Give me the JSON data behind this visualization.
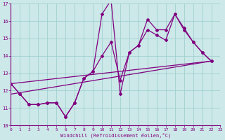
{
  "xlabel": "Windchill (Refroidissement éolien,°C)",
  "xlim": [
    0,
    23
  ],
  "ylim": [
    10,
    17
  ],
  "yticks": [
    10,
    11,
    12,
    13,
    14,
    15,
    16,
    17
  ],
  "xticks": [
    0,
    1,
    2,
    3,
    4,
    5,
    6,
    7,
    8,
    9,
    10,
    11,
    12,
    13,
    14,
    15,
    16,
    17,
    18,
    19,
    20,
    21,
    22,
    23
  ],
  "line_color": "#800080",
  "bg_color": "#cce8e8",
  "grid_color": "#99cccc",
  "x_main": [
    0,
    1,
    2,
    3,
    4,
    5,
    6,
    7,
    8,
    9,
    10,
    11,
    12,
    13,
    14,
    15,
    16,
    17,
    18,
    19,
    20,
    21,
    22
  ],
  "y_main": [
    12.4,
    11.8,
    11.2,
    11.2,
    11.3,
    11.3,
    10.5,
    11.3,
    12.7,
    13.1,
    16.4,
    17.2,
    11.8,
    14.2,
    14.6,
    16.1,
    15.5,
    15.5,
    16.4,
    15.6,
    14.8,
    14.2,
    13.7
  ],
  "x_line2": [
    0,
    1,
    2,
    3,
    4,
    5,
    6,
    7,
    8,
    9,
    10,
    11,
    12,
    13,
    14,
    15,
    16,
    17,
    18,
    19,
    20,
    21,
    22
  ],
  "y_line2": [
    12.4,
    11.8,
    11.2,
    11.2,
    11.3,
    11.3,
    10.5,
    11.3,
    12.7,
    13.1,
    14.0,
    14.8,
    12.6,
    14.2,
    14.6,
    15.5,
    15.2,
    14.9,
    16.4,
    15.5,
    14.8,
    14.2,
    13.7
  ],
  "trend1_x": [
    0,
    22
  ],
  "trend1_y": [
    11.8,
    13.7
  ],
  "trend2_x": [
    0,
    22
  ],
  "trend2_y": [
    12.4,
    13.7
  ]
}
